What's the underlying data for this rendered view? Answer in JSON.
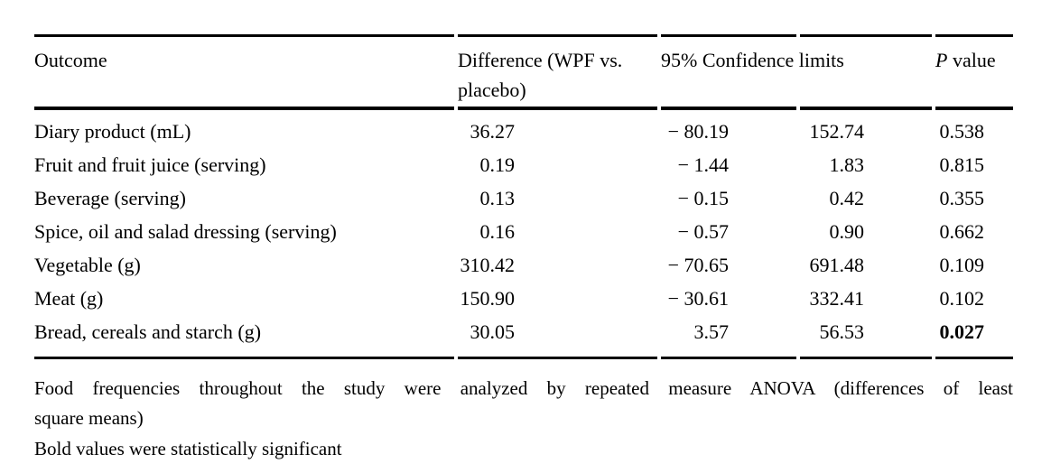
{
  "table": {
    "headers": {
      "outcome": "Outcome",
      "difference": "Difference (WPF vs. placebo)",
      "confidence": "95% Confidence limits",
      "p_italic": "P",
      "p_rest": " value"
    },
    "rows": [
      {
        "outcome": "Diary product (mL)",
        "difference": "36.27",
        "cl_lower": "− 80.19",
        "cl_upper": "152.74",
        "p": "0.538",
        "significant": false
      },
      {
        "outcome": "Fruit and fruit juice (serving)",
        "difference": "0.19",
        "cl_lower": "− 1.44",
        "cl_upper": "1.83",
        "p": "0.815",
        "significant": false
      },
      {
        "outcome": "Beverage (serving)",
        "difference": "0.13",
        "cl_lower": "− 0.15",
        "cl_upper": "0.42",
        "p": "0.355",
        "significant": false
      },
      {
        "outcome": "Spice, oil and salad dressing (serving)",
        "difference": "0.16",
        "cl_lower": "− 0.57",
        "cl_upper": "0.90",
        "p": "0.662",
        "significant": false
      },
      {
        "outcome": "Vegetable (g)",
        "difference": "310.42",
        "cl_lower": "− 70.65",
        "cl_upper": "691.48",
        "p": "0.109",
        "significant": false
      },
      {
        "outcome": "Meat (g)",
        "difference": "150.90",
        "cl_lower": "− 30.61",
        "cl_upper": "332.41",
        "p": "0.102",
        "significant": false
      },
      {
        "outcome": "Bread, cereals and starch (g)",
        "difference": "30.05",
        "cl_lower": "3.57",
        "cl_upper": "56.53",
        "p": "0.027",
        "significant": true
      }
    ]
  },
  "footnotes": {
    "anova_line1": "Food frequencies throughout the study were analyzed by repeated measure ANOVA (differences of least",
    "anova_line2": "square means)",
    "bold_note": "Bold values were statistically significant"
  }
}
